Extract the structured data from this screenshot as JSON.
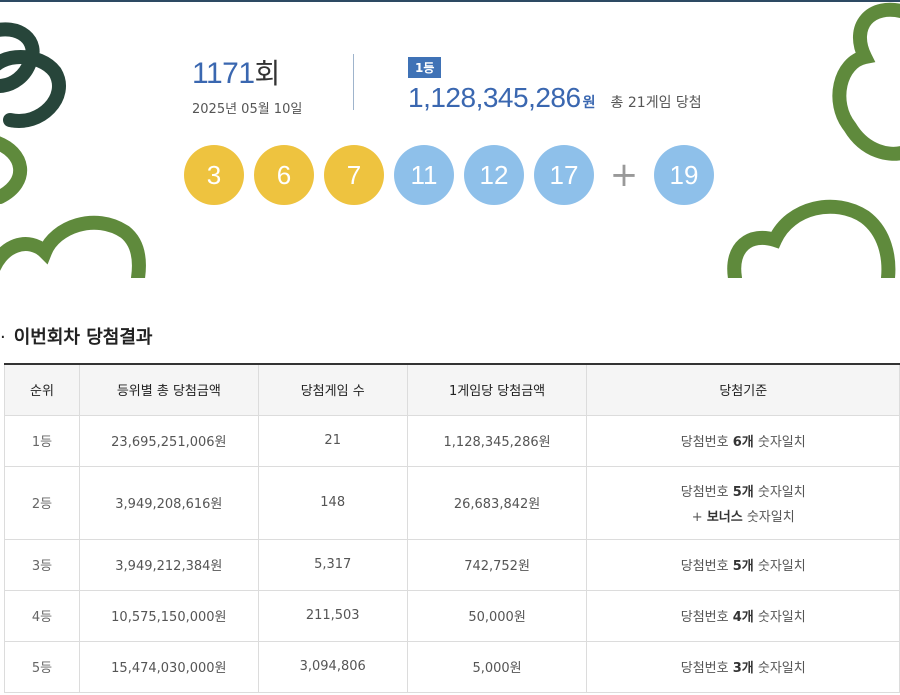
{
  "draw": {
    "round_number": "1171",
    "round_suffix": "회",
    "date": "2025년 05월 10일"
  },
  "first_prize": {
    "badge": "1등",
    "amount": "1,128,345,286",
    "unit": "원",
    "winners_text": "총 21게임 당첨"
  },
  "numbers": [
    "3",
    "6",
    "7",
    "11",
    "12",
    "17"
  ],
  "plus_sign": "+",
  "bonus_number": "19",
  "ball_colors": {
    "yellow": "#eec33f",
    "blue": "#8ec0ea"
  },
  "section": {
    "bullet": "·",
    "title": "이번회차 당첨결과"
  },
  "table": {
    "headers": [
      "순위",
      "등위별 총 당첨금액",
      "당첨게임 수",
      "1게임당 당첨금액",
      "당첨기준"
    ],
    "rows": [
      {
        "rank": "1등",
        "total": "23,695,251,006원",
        "games": "21",
        "per_game": "1,128,345,286원",
        "crit_pre": "당첨번호 ",
        "crit_bold": "6개",
        "crit_post": " 숫자일치",
        "crit2_pre": "",
        "crit2_bold": "",
        "crit2_post": ""
      },
      {
        "rank": "2등",
        "total": "3,949,208,616원",
        "games": "148",
        "per_game": "26,683,842원",
        "crit_pre": "당첨번호 ",
        "crit_bold": "5개",
        "crit_post": " 숫자일치",
        "crit2_pre": "+ ",
        "crit2_bold": "보너스",
        "crit2_post": " 숫자일치"
      },
      {
        "rank": "3등",
        "total": "3,949,212,384원",
        "games": "5,317",
        "per_game": "742,752원",
        "crit_pre": "당첨번호 ",
        "crit_bold": "5개",
        "crit_post": " 숫자일치",
        "crit2_pre": "",
        "crit2_bold": "",
        "crit2_post": ""
      },
      {
        "rank": "4등",
        "total": "10,575,150,000원",
        "games": "211,503",
        "per_game": "50,000원",
        "crit_pre": "당첨번호 ",
        "crit_bold": "4개",
        "crit_post": " 숫자일치",
        "crit2_pre": "",
        "crit2_bold": "",
        "crit2_post": ""
      },
      {
        "rank": "5등",
        "total": "15,474,030,000원",
        "games": "3,094,806",
        "per_game": "5,000원",
        "crit_pre": "당첨번호 ",
        "crit_bold": "3개",
        "crit_post": " 숫자일치",
        "crit2_pre": "",
        "crit2_bold": "",
        "crit2_post": ""
      }
    ]
  },
  "decor_colors": {
    "dark_green": "#27453a",
    "green": "#5f8a3c"
  }
}
